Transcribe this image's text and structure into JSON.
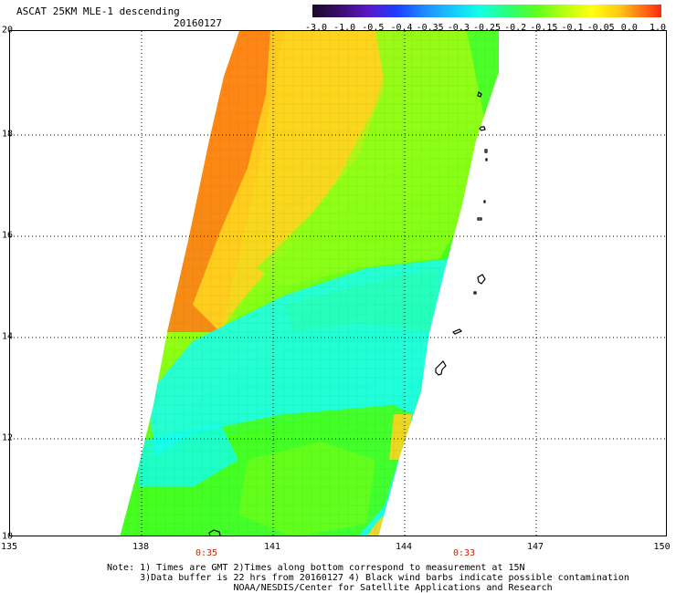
{
  "header": {
    "title": "ASCAT 25KM MLE-1 descending",
    "date": "20160127"
  },
  "colorbar": {
    "labels": [
      "-3.0",
      "-1.0",
      "-0.5",
      "-0.4",
      "-0.35",
      "-0.3",
      "-0.25",
      "-0.2",
      "-0.15",
      "-0.1",
      "-0.05",
      "0.0",
      "1.0"
    ],
    "colors": [
      "#1a0a2a",
      "#3c0d6e",
      "#5a18c8",
      "#1e3cff",
      "#1e8cff",
      "#14c8ff",
      "#14ffe6",
      "#28ff78",
      "#5aff1e",
      "#b4ff14",
      "#ffff14",
      "#ffc814",
      "#ff7814",
      "#ff2810"
    ]
  },
  "map": {
    "latitudes": [
      "20",
      "18",
      "16",
      "14",
      "12",
      "10"
    ],
    "longitudes": [
      "135",
      "138",
      "141",
      "144",
      "147",
      "150"
    ],
    "time_labels": [
      "0:35",
      "0:33"
    ],
    "swath_colors": {
      "orange": "#ff8c1e",
      "yellow": "#fff014",
      "green": "#46ff1e",
      "cyan": "#1effe6"
    }
  },
  "footer": {
    "note_lines": [
      "Note: 1) Times are GMT 2)Times along bottom correspond to measurement at 15N",
      "      3)Data buffer is 22 hrs from 20160127 4) Black wind barbs indicate possible contamination",
      "                       NOAA/NESDIS/Center for Satellite Applications and Research"
    ]
  }
}
